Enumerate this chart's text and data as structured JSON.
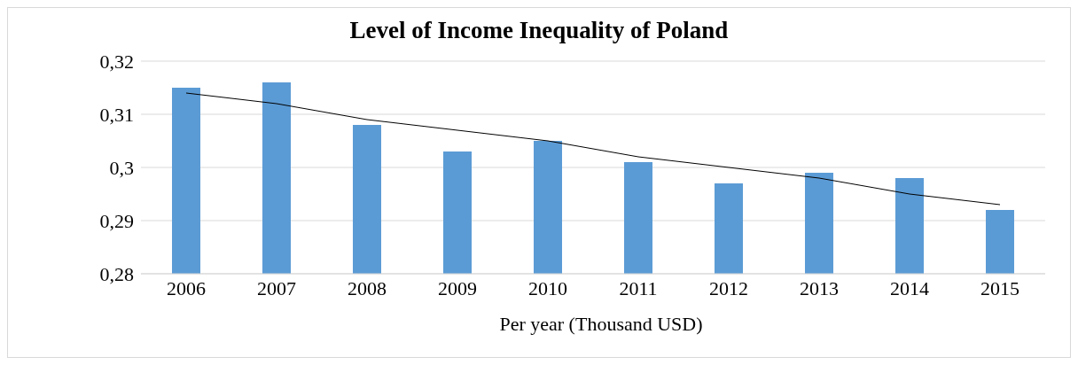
{
  "chart_data": {
    "type": "bar",
    "title": "Level of Income Inequality of Poland",
    "xlabel": "Per year (Thousand USD)",
    "categories": [
      "2006",
      "2007",
      "2008",
      "2009",
      "2010",
      "2011",
      "2012",
      "2013",
      "2014",
      "2015"
    ],
    "series": [
      {
        "color": "#5b9bd5",
        "values": [
          0.315,
          0.316,
          0.308,
          0.303,
          0.305,
          0.301,
          0.297,
          0.299,
          0.298,
          0.292
        ]
      },
      {
        "type": "line",
        "color": "#000000",
        "values": [
          0.314,
          0.312,
          0.309,
          0.307,
          0.305,
          0.302,
          0.3,
          0.298,
          0.295,
          0.293
        ]
      }
    ],
    "ylim": [
      0.28,
      0.32
    ],
    "yticks": [
      {
        "value": 0.28,
        "label": "0,28"
      },
      {
        "value": 0.29,
        "label": "0,29"
      },
      {
        "value": 0.3,
        "label": "0,3"
      },
      {
        "value": 0.31,
        "label": "0,31"
      },
      {
        "value": 0.32,
        "label": "0,32"
      }
    ],
    "grid": "y",
    "legend": false
  }
}
